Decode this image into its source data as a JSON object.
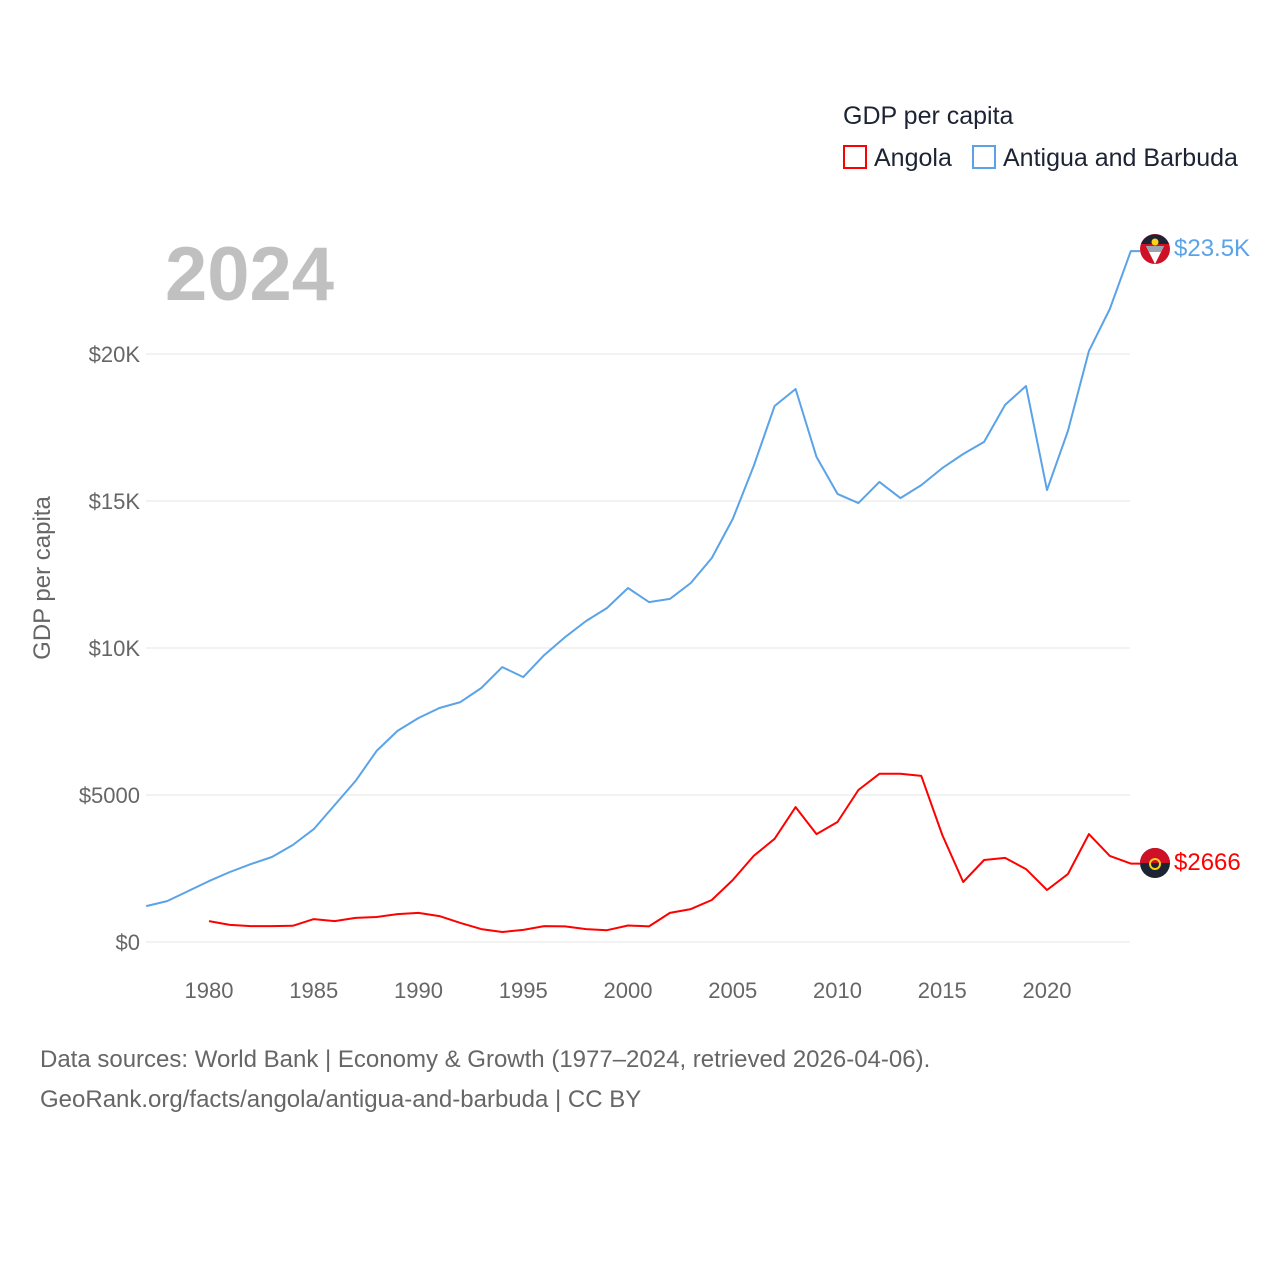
{
  "chart_data": {
    "type": "line",
    "title": "2024",
    "ylabel": "GDP per capita",
    "xlabel": "",
    "legend_title": "GDP per capita",
    "legend_position": "top-right",
    "xlim": [
      1977,
      2024
    ],
    "ylim": [
      0,
      24000
    ],
    "grid": true,
    "x_ticks": [
      1980,
      1985,
      1990,
      1995,
      2000,
      2005,
      2010,
      2015,
      2020
    ],
    "y_ticks": [
      0,
      5000,
      10000,
      15000,
      20000
    ],
    "y_tick_labels": [
      "$0",
      "$5000",
      "$10K",
      "$15K",
      "$20K"
    ],
    "series": [
      {
        "name": "Angola",
        "color": "#ff0000",
        "end_label": "$2666",
        "start_year": 1980,
        "values": [
          710,
          580,
          540,
          540,
          550,
          780,
          710,
          820,
          850,
          950,
          990,
          880,
          650,
          440,
          340,
          410,
          540,
          530,
          440,
          400,
          560,
          530,
          990,
          1120,
          1430,
          2110,
          2930,
          3510,
          4590,
          3670,
          4080,
          5170,
          5720,
          5720,
          5650,
          3640,
          2040,
          2790,
          2860,
          2480,
          1770,
          2310,
          3670,
          2930,
          2666
        ]
      },
      {
        "name": "Antigua and Barbuda",
        "color": "#5ba3e8",
        "end_label": "$23.5K",
        "start_year": 1977,
        "values": [
          1220,
          1390,
          1730,
          2070,
          2380,
          2650,
          2890,
          3300,
          3840,
          4660,
          5480,
          6500,
          7180,
          7620,
          7960,
          8160,
          8640,
          9350,
          9010,
          9760,
          10370,
          10920,
          11360,
          12040,
          11560,
          11670,
          12210,
          13060,
          14390,
          16190,
          18230,
          18810,
          16500,
          15240,
          14930,
          15650,
          15100,
          15540,
          16120,
          16600,
          17010,
          18270,
          18910,
          15370,
          17380,
          20100,
          21530,
          23500
        ]
      }
    ]
  },
  "footer": {
    "line1": "Data sources: World Bank | Economy & Growth (1977–2024, retrieved 2026-04-06).",
    "line2": "GeoRank.org/facts/angola/antigua-and-barbuda | CC BY"
  }
}
